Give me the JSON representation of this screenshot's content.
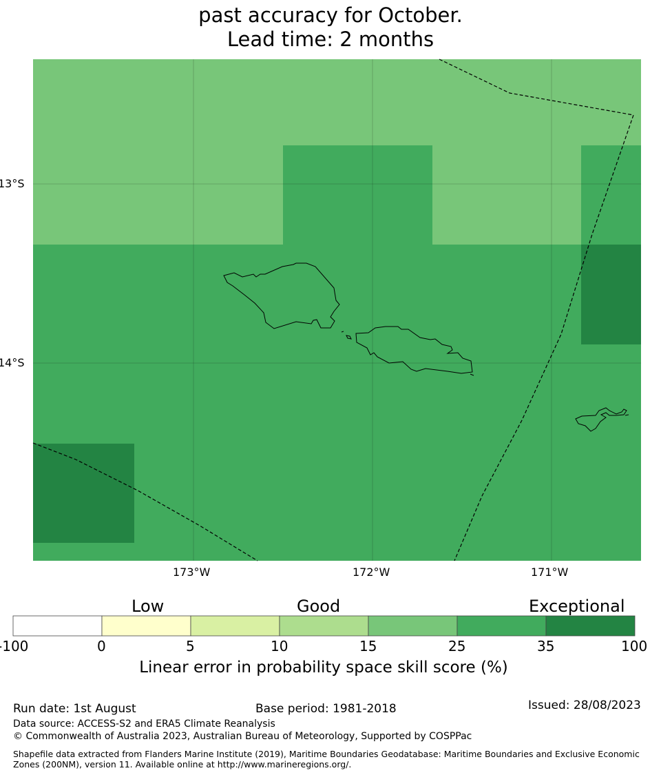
{
  "title": {
    "line1": "past accuracy for October.",
    "line2": "Lead time: 2 months"
  },
  "map": {
    "lat_labels": [
      "13°S",
      "14°S"
    ],
    "lon_labels": [
      "173°W",
      "172°W",
      "171°W"
    ],
    "colors": {
      "skill_15_25": "#78c679",
      "skill_25_35": "#41ab5d",
      "skill_35_100": "#238443"
    }
  },
  "colorbar": {
    "headings": [
      "Low",
      "Good",
      "Exceptional"
    ],
    "ticks": [
      "-100",
      "0",
      "5",
      "10",
      "15",
      "25",
      "35",
      "100"
    ],
    "colors": [
      "#ffffff",
      "#ffffcc",
      "#d9f0a3",
      "#addd8e",
      "#78c679",
      "#41ab5d",
      "#238443"
    ],
    "label": "Linear error in probability space skill score (%)"
  },
  "footer": {
    "run_date": "Run date: 1st August",
    "base_period": "Base period: 1981-2018",
    "issued": "Issued: 28/08/2023",
    "data_source": "Data source: ACCESS-S2 and ERA5 Climate Reanalysis",
    "copyright": "© Commonwealth of Australia 2023, Australian Bureau of Meteorology, Supported by COSPPac",
    "shapefile": "Shapefile data extracted from Flanders Marine Institute (2019), Maritime Boundaries Geodatabase: Maritime Boundaries and Exclusive Economic Zones (200NM), version 11. Available online at http://www.marineregions.org/."
  }
}
